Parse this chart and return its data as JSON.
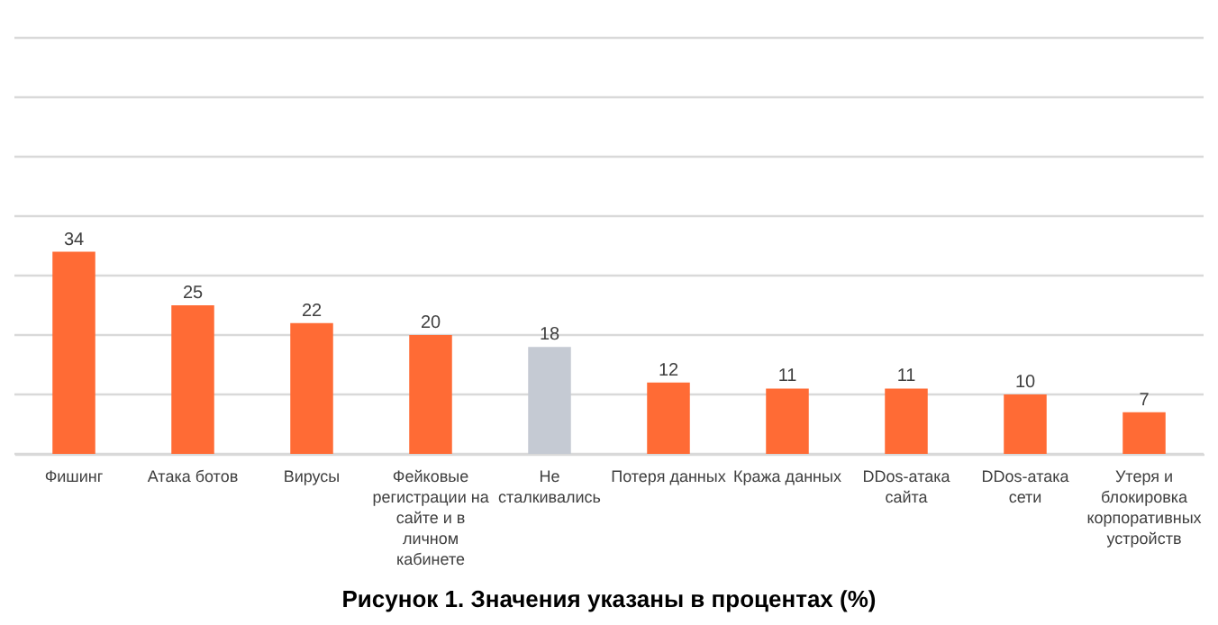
{
  "chart_data": {
    "type": "bar",
    "title": "Рисунок 1. Значения указаны в процентах (%)",
    "categories": [
      "Фишинг",
      "Атака ботов",
      "Вирусы",
      "Фейковые регистрации на сайте и в личном кабинете",
      "Не сталкивались",
      "Потеря данных",
      "Кража данных",
      "DDos-атака сайта",
      "DDos-атака сети",
      "Утеря и блокировка корпоративных устройств"
    ],
    "values": [
      34,
      25,
      22,
      20,
      18,
      12,
      11,
      11,
      10,
      7
    ],
    "colors": [
      "#ff6b35",
      "#ff6b35",
      "#ff6b35",
      "#ff6b35",
      "#c5cad3",
      "#ff6b35",
      "#ff6b35",
      "#ff6b35",
      "#ff6b35",
      "#ff6b35"
    ],
    "ylim": [
      0,
      70
    ],
    "yticks": [
      {
        "value": 0,
        "label": null
      },
      {
        "value": 10,
        "label": null
      },
      {
        "value": 20,
        "label": null
      },
      {
        "value": 30,
        "label": null
      },
      {
        "value": 40,
        "label": null
      },
      {
        "value": 50,
        "label": null
      },
      {
        "value": 60,
        "label": null
      },
      {
        "value": 70,
        "label": null
      }
    ],
    "grid": "y",
    "data_labels": true
  }
}
